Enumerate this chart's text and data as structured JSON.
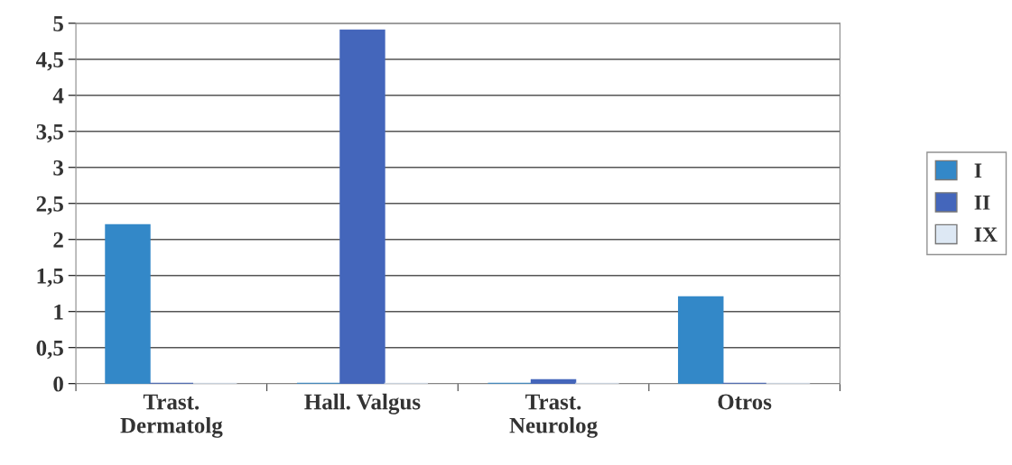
{
  "chart_data": {
    "type": "bar",
    "categories": [
      "Trast.\nDermatolg",
      "Hall. Valgus",
      "Trast.\nNeurolog",
      "Otros"
    ],
    "series": [
      {
        "name": "I",
        "color": "#3388c8",
        "values": [
          2.2,
          0,
          0,
          1.2
        ]
      },
      {
        "name": "II",
        "color": "#4466bb",
        "values": [
          0,
          4.9,
          0.05,
          0
        ]
      },
      {
        "name": "IX",
        "color": "#dde8f4",
        "values": [
          0,
          0,
          0,
          0
        ]
      }
    ],
    "ylim": [
      0,
      5
    ],
    "yticks": [
      0,
      {
        "value": 0.5,
        "label": "0,5"
      },
      1,
      {
        "value": 1.5,
        "label": "1,5"
      },
      2,
      {
        "value": 2.5,
        "label": "2,5"
      },
      3,
      {
        "value": 3.5,
        "label": "3,5"
      },
      4,
      {
        "value": 4.5,
        "label": "4,5"
      },
      5
    ],
    "grid": "y",
    "legend": "right"
  }
}
